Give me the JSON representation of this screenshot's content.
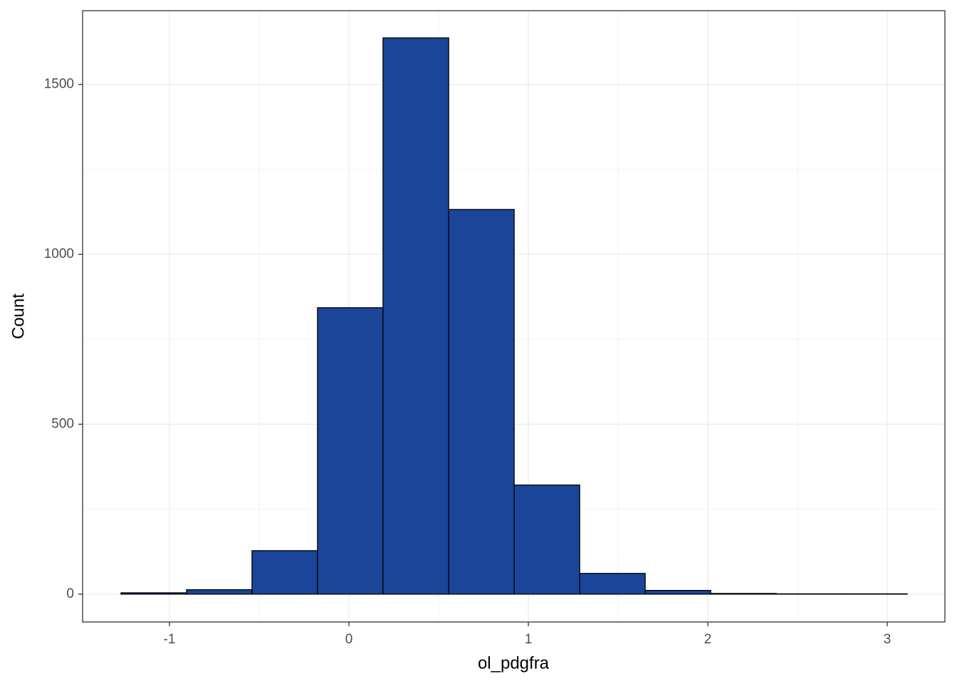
{
  "chart_data": {
    "type": "histogram",
    "x_label": "ol_pdgfra",
    "y_label": "Count",
    "bins": [
      -1.27,
      -0.905,
      -0.54,
      -0.175,
      0.19,
      0.556,
      0.921,
      1.286,
      1.651,
      2.016,
      2.381,
      2.746,
      3.111
    ],
    "counts": [
      4,
      13,
      128,
      843,
      1637,
      1132,
      321,
      61,
      11,
      2,
      1,
      1
    ],
    "color": "#1a4599",
    "xlim": [
      -1.484,
      3.321
    ],
    "xticks": [
      -1,
      0,
      1,
      2,
      3
    ],
    "ylim": [
      -82,
      1717
    ],
    "yticks": [
      0,
      500,
      1000,
      1500
    ],
    "grid": true
  }
}
